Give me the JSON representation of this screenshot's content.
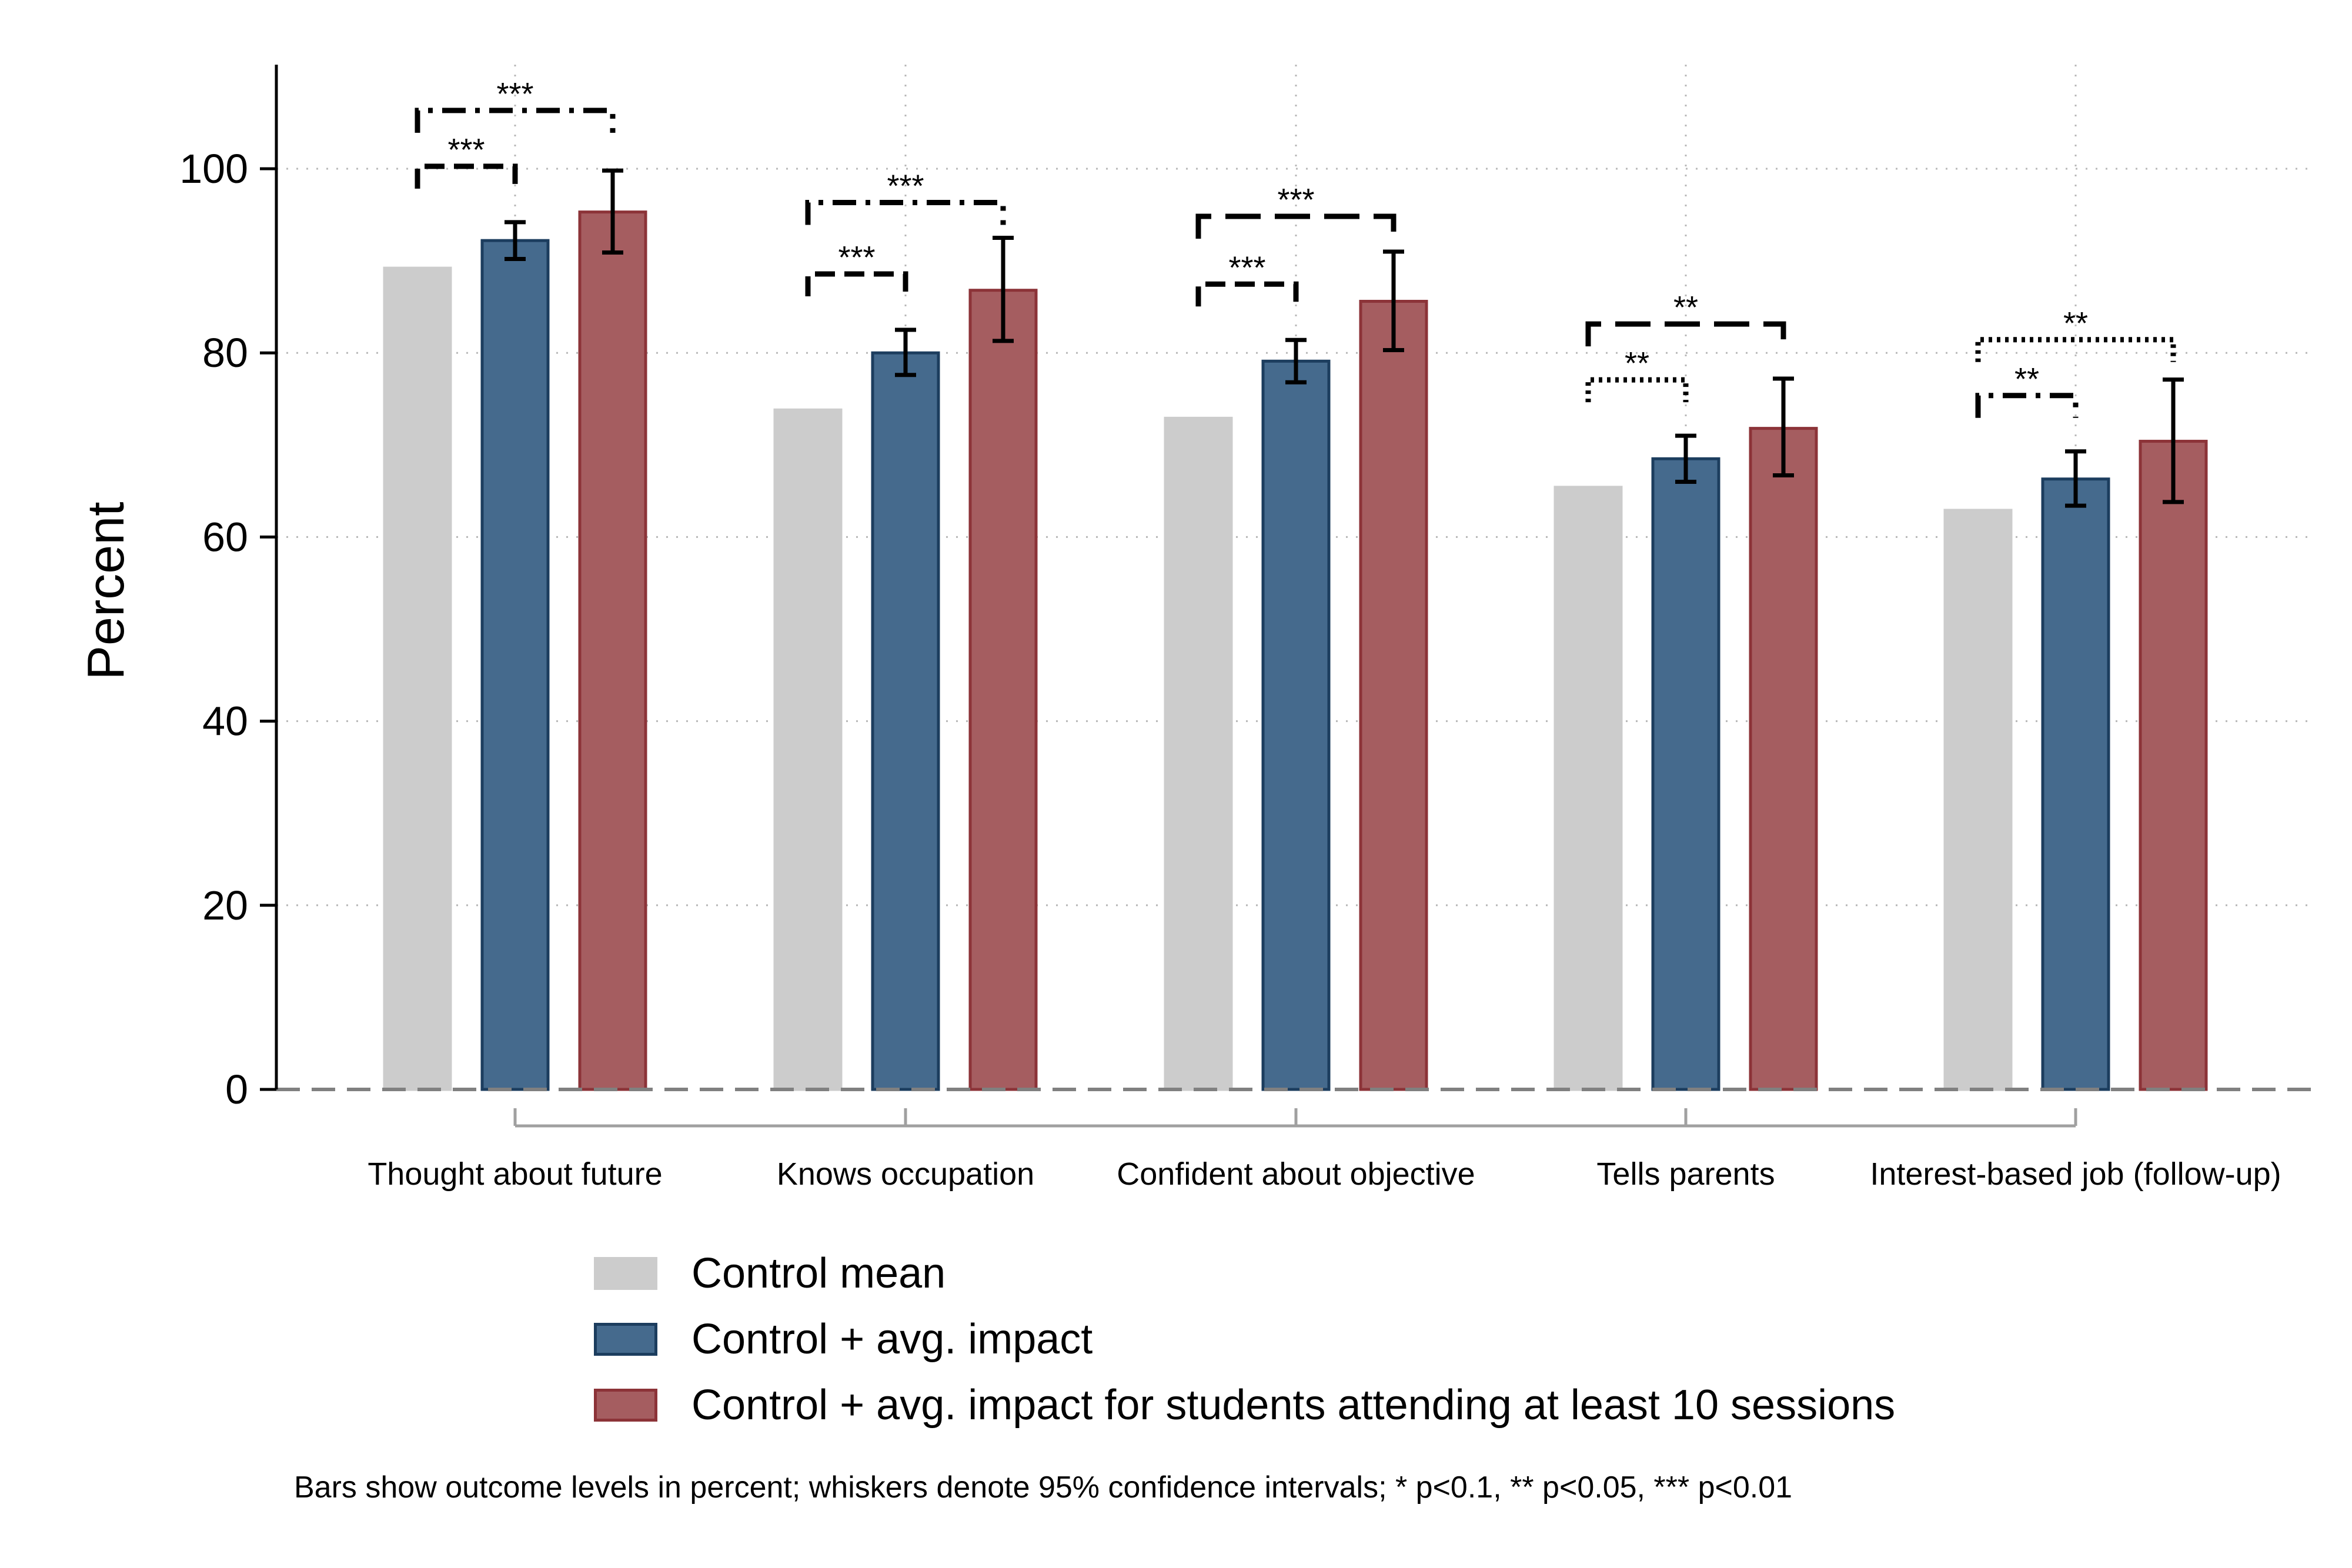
{
  "chart_data": {
    "type": "bar",
    "ylabel": "Percent",
    "ylim": [
      0,
      100
    ],
    "yticks": [
      0,
      20,
      40,
      60,
      80,
      100
    ],
    "grid": true,
    "categories": [
      "Thought about future",
      "Knows occupation",
      "Confident about objective",
      "Tells parents",
      "Interest-based job (follow-up)"
    ],
    "series": [
      {
        "name": "Control mean",
        "color": "#cccccc",
        "stroke": "#cccccc",
        "values": [
          89.2,
          73.8,
          72.9,
          65.4,
          62.9
        ]
      },
      {
        "name": "Control + avg. impact",
        "color": "#456a8d",
        "stroke": "#1c3d5e",
        "values": [
          92.2,
          80.0,
          79.1,
          68.5,
          66.3
        ],
        "ci_low": [
          90.2,
          77.6,
          76.8,
          66.0,
          63.4
        ],
        "ci_high": [
          94.2,
          82.5,
          81.4,
          71.0,
          69.3
        ]
      },
      {
        "name": "Control + avg. impact for students attending at least 10 sessions",
        "color": "#a55d60",
        "stroke": "#8c3338",
        "values": [
          95.3,
          86.8,
          85.6,
          71.8,
          70.4
        ],
        "ci_low": [
          90.9,
          81.3,
          80.3,
          66.7,
          63.8
        ],
        "ci_high": [
          99.8,
          92.5,
          91.0,
          77.2,
          77.1
        ]
      }
    ],
    "significance": [
      {
        "inner": "***",
        "outer": "***",
        "inner_style": "dash",
        "outer_style": "dashdot"
      },
      {
        "inner": "***",
        "outer": "***",
        "inner_style": "dash",
        "outer_style": "dashdot"
      },
      {
        "inner": "***",
        "outer": "***",
        "inner_style": "dash",
        "outer_style": "longdash"
      },
      {
        "inner": "**",
        "outer": "**",
        "inner_style": "dot",
        "outer_style": "longdash"
      },
      {
        "inner": "**",
        "outer": "**",
        "inner_style": "dashdot",
        "outer_style": "dot"
      }
    ],
    "legend_position": "bottom",
    "note": "Bars show outcome levels in percent; whiskers denote 95% confidence intervals; * p<0.1, ** p<0.05, *** p<0.01"
  }
}
